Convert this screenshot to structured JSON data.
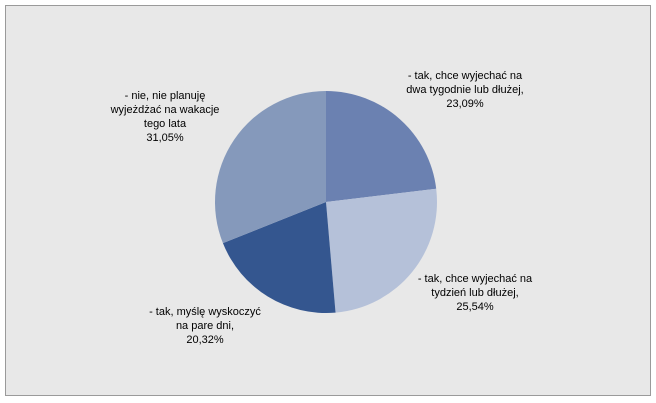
{
  "chart_data": {
    "type": "pie",
    "categories": [
      "- tak, chce wyjechać na dwa tygodnie lub dłużej,",
      "- tak, chce wyjechać na tydzień lub dłużej,",
      "- tak, myślę wyskoczyć na pare dni,",
      "- nie, nie planuję wyjeżdżać na wakacje tego lata"
    ],
    "values": [
      23.09,
      25.54,
      20.32,
      31.05
    ],
    "value_labels": [
      "23,09%",
      "25,54%",
      "20,32%",
      "31,05%"
    ],
    "colors": [
      "#6b81b1",
      "#b5c1d9",
      "#34568f",
      "#8599bb"
    ]
  }
}
